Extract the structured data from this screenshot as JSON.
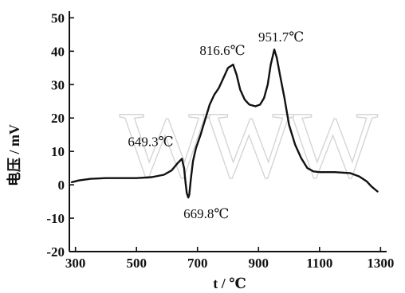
{
  "watermark": "WWW",
  "chart_data": {
    "type": "line",
    "xlabel": "t / ℃",
    "ylabel": "电压 / mV",
    "xlim": [
      280,
      1320
    ],
    "ylim": [
      -20,
      52
    ],
    "xticks": [
      300,
      500,
      700,
      900,
      1100,
      1300
    ],
    "yticks": [
      -20,
      -10,
      0,
      10,
      20,
      30,
      40,
      50
    ],
    "grid": false,
    "series": [
      {
        "points": [
          [
            288,
            0.8
          ],
          [
            310,
            1.3
          ],
          [
            350,
            1.8
          ],
          [
            400,
            2.0
          ],
          [
            450,
            2.0
          ],
          [
            500,
            2.0
          ],
          [
            550,
            2.3
          ],
          [
            590,
            3.0
          ],
          [
            615,
            4.3
          ],
          [
            635,
            6.5
          ],
          [
            649,
            7.8
          ],
          [
            656,
            5.0
          ],
          [
            661,
            0.5
          ],
          [
            665,
            -2.5
          ],
          [
            669.8,
            -3.8
          ],
          [
            673,
            -3.0
          ],
          [
            678,
            1.5
          ],
          [
            685,
            7.0
          ],
          [
            695,
            11.0
          ],
          [
            710,
            15.0
          ],
          [
            725,
            19.5
          ],
          [
            740,
            24.0
          ],
          [
            755,
            27.0
          ],
          [
            770,
            29.0
          ],
          [
            785,
            32.0
          ],
          [
            800,
            35.0
          ],
          [
            816.6,
            36.0
          ],
          [
            828,
            33.0
          ],
          [
            840,
            28.5
          ],
          [
            855,
            25.5
          ],
          [
            870,
            24.0
          ],
          [
            890,
            23.5
          ],
          [
            905,
            24.0
          ],
          [
            918,
            26.0
          ],
          [
            930,
            30.0
          ],
          [
            940,
            36.0
          ],
          [
            951.7,
            40.5
          ],
          [
            960,
            38.0
          ],
          [
            970,
            33.0
          ],
          [
            985,
            26.0
          ],
          [
            1000,
            18.0
          ],
          [
            1020,
            12.0
          ],
          [
            1040,
            8.0
          ],
          [
            1060,
            5.0
          ],
          [
            1080,
            4.0
          ],
          [
            1100,
            3.8
          ],
          [
            1150,
            3.8
          ],
          [
            1200,
            3.5
          ],
          [
            1230,
            2.5
          ],
          [
            1255,
            1.0
          ],
          [
            1270,
            -0.5
          ],
          [
            1290,
            -2.0
          ]
        ]
      }
    ],
    "annotations": [
      {
        "text": "649.3℃",
        "x": 649.3,
        "y": 7.8
      },
      {
        "text": "669.8℃",
        "x": 669.8,
        "y": -3.8
      },
      {
        "text": "816.6℃",
        "x": 816.6,
        "y": 36.0
      },
      {
        "text": "951.7℃",
        "x": 951.7,
        "y": 40.5
      }
    ]
  }
}
